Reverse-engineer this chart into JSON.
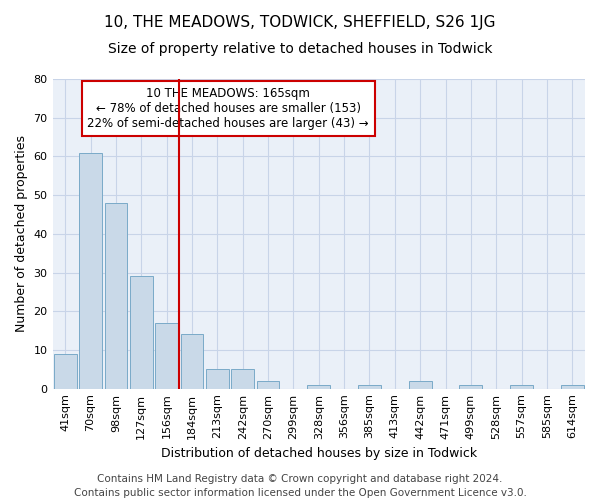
{
  "title": "10, THE MEADOWS, TODWICK, SHEFFIELD, S26 1JG",
  "subtitle": "Size of property relative to detached houses in Todwick",
  "xlabel": "Distribution of detached houses by size in Todwick",
  "ylabel": "Number of detached properties",
  "categories": [
    "41sqm",
    "70sqm",
    "98sqm",
    "127sqm",
    "156sqm",
    "184sqm",
    "213sqm",
    "242sqm",
    "270sqm",
    "299sqm",
    "328sqm",
    "356sqm",
    "385sqm",
    "413sqm",
    "442sqm",
    "471sqm",
    "499sqm",
    "528sqm",
    "557sqm",
    "585sqm",
    "614sqm"
  ],
  "values": [
    9,
    61,
    48,
    29,
    17,
    14,
    5,
    5,
    2,
    0,
    1,
    0,
    1,
    0,
    2,
    0,
    1,
    0,
    1,
    0,
    1
  ],
  "bar_color": "#c9d9e8",
  "bar_edge_color": "#7aaac8",
  "vline_color": "#cc0000",
  "annotation_text": "10 THE MEADOWS: 165sqm\n← 78% of detached houses are smaller (153)\n22% of semi-detached houses are larger (43) →",
  "annotation_box_color": "#ffffff",
  "annotation_box_edge_color": "#cc0000",
  "ylim": [
    0,
    80
  ],
  "yticks": [
    0,
    10,
    20,
    30,
    40,
    50,
    60,
    70,
    80
  ],
  "grid_color": "#c8d4e8",
  "background_color": "#eaf0f8",
  "footer": "Contains HM Land Registry data © Crown copyright and database right 2024.\nContains public sector information licensed under the Open Government Licence v3.0.",
  "title_fontsize": 11,
  "subtitle_fontsize": 10,
  "xlabel_fontsize": 9,
  "ylabel_fontsize": 9,
  "tick_fontsize": 8,
  "annotation_fontsize": 8.5,
  "footer_fontsize": 7.5
}
